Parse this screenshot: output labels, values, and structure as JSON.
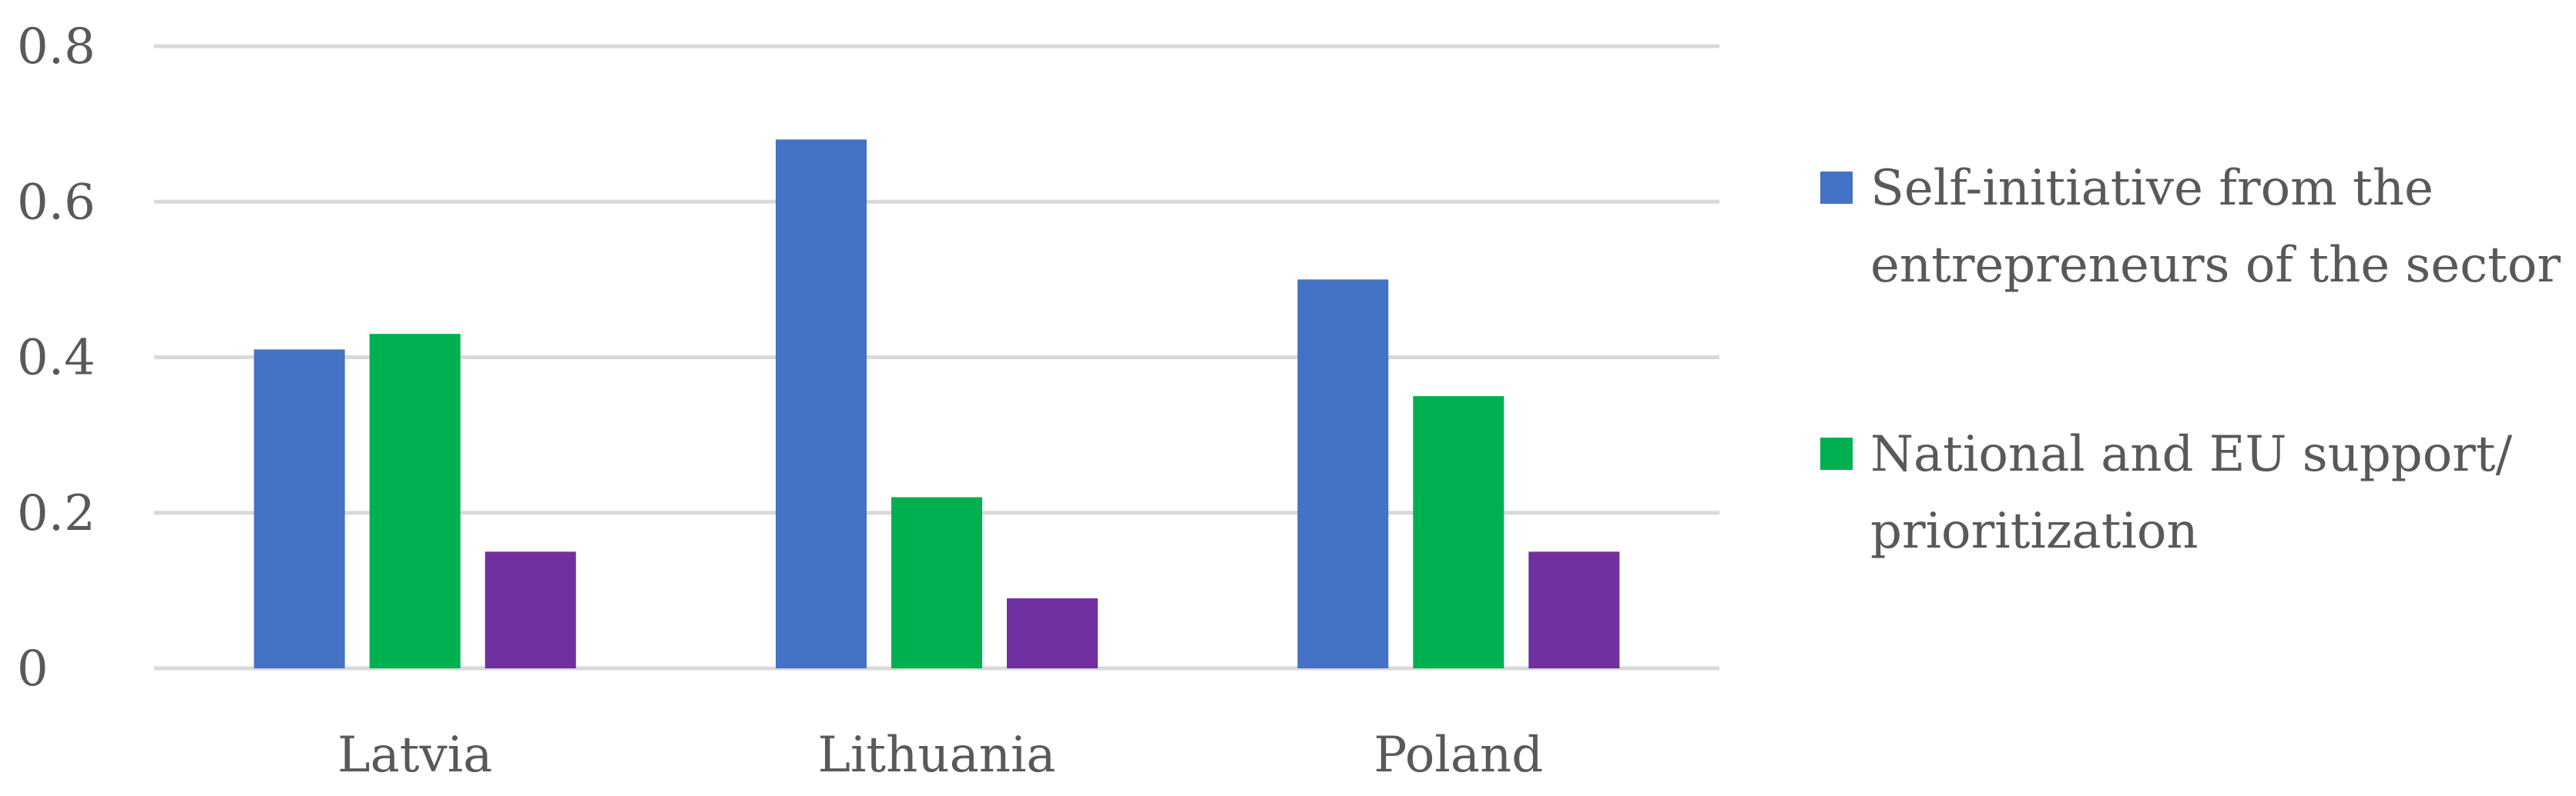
{
  "chart_data": {
    "type": "bar",
    "categories": [
      "Latvia",
      "Lithuania",
      "Poland"
    ],
    "series": [
      {
        "name": "Self-initiative from the entrepreneurs of the sector",
        "color": "#4472C4",
        "values": [
          0.41,
          0.68,
          0.5
        ]
      },
      {
        "name": "National and EU support/ prioritization",
        "color": "#00B050",
        "values": [
          0.43,
          0.22,
          0.35
        ]
      },
      {
        "name": "",
        "color": "#7030A0",
        "values": [
          0.15,
          0.09,
          0.15
        ]
      }
    ],
    "ylim": [
      0,
      0.8
    ],
    "yticks": [
      "0",
      "0.2",
      "0.4",
      "0.6",
      "0.8"
    ],
    "grid": true,
    "legend_position": "right",
    "legend_lines": [
      [
        "Self-initiative from the",
        "entrepreneurs of the sector"
      ],
      [
        "National and EU support/",
        "prioritization"
      ]
    ],
    "gridline_color": "#D9D9D9"
  }
}
